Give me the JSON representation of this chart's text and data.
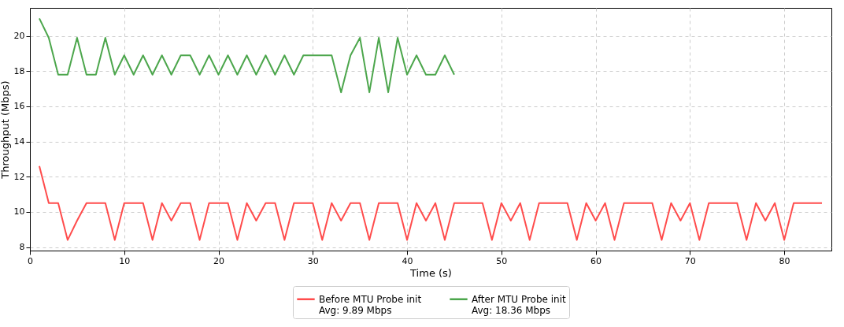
{
  "chart_data": {
    "type": "line",
    "xlabel": "Time (s)",
    "ylabel": "Throughput (Mbps)",
    "xlim": [
      0,
      85
    ],
    "ylim": [
      7.8,
      21.6
    ],
    "xticks": [
      0,
      10,
      20,
      30,
      40,
      50,
      60,
      70,
      80
    ],
    "yticks": [
      8,
      10,
      12,
      14,
      16,
      18,
      20
    ],
    "grid": true,
    "legend": "bottom",
    "line_style": "solid",
    "series": [
      {
        "name": "Before MTU Probe init\nAvg: 9.89 Mbps",
        "color": "#ff4c4c",
        "x": [
          1,
          2,
          3,
          4,
          5,
          6,
          7,
          8,
          9,
          10,
          11,
          12,
          13,
          14,
          15,
          16,
          17,
          18,
          19,
          20,
          21,
          22,
          23,
          24,
          25,
          26,
          27,
          28,
          29,
          30,
          31,
          32,
          33,
          34,
          35,
          36,
          37,
          38,
          39,
          40,
          41,
          42,
          43,
          44,
          45,
          46,
          47,
          48,
          49,
          50,
          51,
          52,
          53,
          54,
          55,
          56,
          57,
          58,
          59,
          60,
          61,
          62,
          63,
          64,
          65,
          66,
          67,
          68,
          69,
          70,
          71,
          72,
          73,
          74,
          75,
          76,
          77,
          78,
          79,
          80,
          81,
          82,
          83,
          84
        ],
        "values": [
          12.6,
          10.5,
          10.5,
          8.4,
          9.5,
          10.5,
          10.5,
          10.5,
          8.4,
          10.5,
          10.5,
          10.5,
          8.4,
          10.5,
          9.5,
          10.5,
          10.5,
          8.4,
          10.5,
          10.5,
          10.5,
          8.4,
          10.5,
          9.5,
          10.5,
          10.5,
          8.4,
          10.5,
          10.5,
          10.5,
          8.4,
          10.5,
          9.5,
          10.5,
          10.5,
          8.4,
          10.5,
          10.5,
          10.5,
          8.4,
          10.5,
          9.5,
          10.5,
          8.4,
          10.5,
          10.5,
          10.5,
          10.5,
          8.4,
          10.5,
          9.5,
          10.5,
          8.4,
          10.5,
          10.5,
          10.5,
          10.5,
          8.4,
          10.5,
          9.5,
          10.5,
          8.4,
          10.5,
          10.5,
          10.5,
          10.5,
          8.4,
          10.5,
          9.5,
          10.5,
          8.4,
          10.5,
          10.5,
          10.5,
          10.5,
          8.4,
          10.5,
          9.5,
          10.5,
          8.4,
          10.5,
          10.5,
          10.5,
          10.5
        ]
      },
      {
        "name": "After MTU Probe init\nAvg: 18.36 Mbps",
        "color": "#4ca64c",
        "x": [
          1,
          2,
          3,
          4,
          5,
          6,
          7,
          8,
          9,
          10,
          11,
          12,
          13,
          14,
          15,
          16,
          17,
          18,
          19,
          20,
          21,
          22,
          23,
          24,
          25,
          26,
          27,
          28,
          29,
          30,
          31,
          32,
          33,
          34,
          35,
          36,
          37,
          38,
          39,
          40,
          41,
          42,
          43,
          44,
          45
        ],
        "values": [
          21.0,
          19.9,
          17.8,
          17.8,
          19.9,
          17.8,
          17.8,
          19.9,
          17.8,
          18.9,
          17.8,
          18.9,
          17.8,
          18.9,
          17.8,
          18.9,
          18.9,
          17.8,
          18.9,
          17.8,
          18.9,
          17.8,
          18.9,
          17.8,
          18.9,
          17.8,
          18.9,
          17.8,
          18.9,
          18.9,
          18.9,
          18.9,
          16.8,
          18.9,
          19.9,
          16.8,
          19.9,
          16.8,
          19.9,
          17.8,
          18.9,
          17.8,
          17.8,
          18.9,
          17.8
        ]
      }
    ]
  }
}
